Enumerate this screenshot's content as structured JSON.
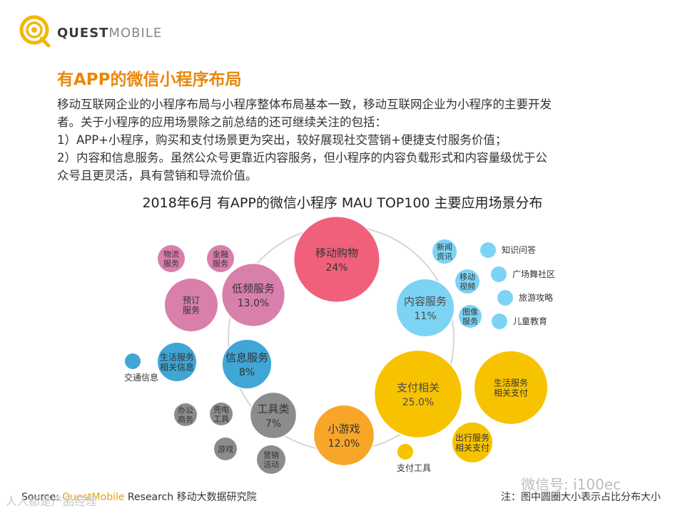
{
  "brand": {
    "logo_text_bold": "QUEST",
    "logo_text_light": "MOBILE"
  },
  "heading": "有APP的微信小程序布局",
  "paragraph_lines": [
    "移动互联网企业的小程序布局与小程序整体布局基本一致，移动互联网企业为小程序的主要开发",
    "者。关于小程序的应用场景除之前总结的还可继续关注的包括：",
    "1）APP+小程序，购买和支付场景更为突出，较好展现社交营销+便捷支付服务价值；",
    "2）内容和信息服务。虽然公众号更靠近内容服务，但小程序的内容负载形式和内容量级优于公",
    "众号且更灵活，具有营销和导流价值。"
  ],
  "chart_data": {
    "type": "bubble",
    "title": "2018年6月 有APP的微信小程序 MAU TOP100 主要应用场景分布",
    "note": "注：图中圆圈大小表示占比分布大小",
    "main_categories": [
      {
        "name": "移动购物",
        "value": "24%",
        "share": 24.0,
        "color": "#f0607a"
      },
      {
        "name": "内容服务",
        "value": "11%",
        "share": 11.0,
        "color": "#7dd3f3"
      },
      {
        "name": "支付相关",
        "value": "25.0%",
        "share": 25.0,
        "color": "#f7c300"
      },
      {
        "name": "小游戏",
        "value": "12.0%",
        "share": 12.0,
        "color": "#f7a628"
      },
      {
        "name": "工具类",
        "value": "7%",
        "share": 7.0,
        "color": "#8c8c8c"
      },
      {
        "name": "信息服务",
        "value": "8%",
        "share": 8.0,
        "color": "#3fa6d6"
      },
      {
        "name": "低频服务",
        "value": "13.0%",
        "share": 13.0,
        "color": "#d97fac"
      }
    ],
    "sub_categories": [
      {
        "parent": "内容服务",
        "name": "新闻资讯",
        "lines": [
          "新闻",
          "资讯"
        ]
      },
      {
        "parent": "内容服务",
        "name": "移动视频",
        "lines": [
          "移动",
          "视频"
        ]
      },
      {
        "parent": "内容服务",
        "name": "图像服务",
        "lines": [
          "图像",
          "服务"
        ]
      },
      {
        "parent": "内容服务",
        "name": "知识问答",
        "lines": [
          "知识问答"
        ]
      },
      {
        "parent": "内容服务",
        "name": "广场舞社区",
        "lines": [
          "广场舞社区"
        ]
      },
      {
        "parent": "内容服务",
        "name": "旅游攻略",
        "lines": [
          "旅游攻略"
        ]
      },
      {
        "parent": "内容服务",
        "name": "儿童教育",
        "lines": [
          "儿童教育"
        ]
      },
      {
        "parent": "支付相关",
        "name": "生活服务相关支付",
        "lines": [
          "生活服务",
          "相关支付"
        ]
      },
      {
        "parent": "支付相关",
        "name": "出行服务相关支付",
        "lines": [
          "出行服务",
          "相关支付"
        ]
      },
      {
        "parent": "支付相关",
        "name": "支付工具",
        "lines": [
          "支付工具"
        ]
      },
      {
        "parent": "工具类",
        "name": "办公商务",
        "lines": [
          "办公",
          "商务"
        ]
      },
      {
        "parent": "工具类",
        "name": "壳电工具",
        "lines": [
          "壳电",
          "工具"
        ]
      },
      {
        "parent": "工具类",
        "name": "游戏",
        "lines": [
          "游戏"
        ]
      },
      {
        "parent": "工具类",
        "name": "营销活动",
        "lines": [
          "营销",
          "活动"
        ]
      },
      {
        "parent": "信息服务",
        "name": "生活服务相关信息",
        "lines": [
          "生活服务",
          "相关信息"
        ]
      },
      {
        "parent": "信息服务",
        "name": "交通信息",
        "lines": [
          "交通信息"
        ]
      },
      {
        "parent": "低频服务",
        "name": "物流服务",
        "lines": [
          "物流",
          "服务"
        ]
      },
      {
        "parent": "低频服务",
        "name": "金融服务",
        "lines": [
          "金融",
          "服务"
        ]
      },
      {
        "parent": "低频服务",
        "name": "预订服务",
        "lines": [
          "预订",
          "服务"
        ]
      }
    ]
  },
  "footer": {
    "source_prefix": "Source: ",
    "source_brand": "QuestMobile",
    "source_rest": " Research 移动大数据研究院",
    "note": "注：图中圆圈大小表示占比分布大小"
  },
  "watermarks": {
    "left": "人人都是产品经理",
    "right": "微信号: i100ec"
  }
}
